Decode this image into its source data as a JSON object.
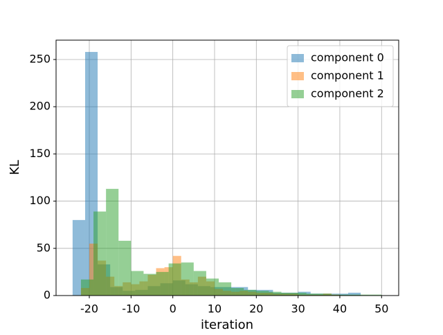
{
  "chart_data": {
    "type": "histogram",
    "x_label": "iteration",
    "y_label": "KL",
    "xlim": [
      -27.96,
      54.1
    ],
    "ylim": [
      0,
      270.5
    ],
    "xticks": [
      -20,
      -10,
      0,
      10,
      20,
      30,
      40,
      50
    ],
    "yticks": [
      0,
      50,
      100,
      150,
      200,
      250
    ],
    "grid": true,
    "legend": "upper-right",
    "opacity": 0.5,
    "series": [
      {
        "name": "component 0",
        "color": "#1f77b4",
        "bins": [
          -24,
          -21,
          -18,
          -15,
          -12,
          -9,
          -6,
          -3,
          0,
          3,
          6,
          9,
          12,
          15,
          18,
          21,
          24,
          27,
          30,
          33,
          36,
          39,
          42,
          45
        ],
        "values": [
          80,
          258,
          33,
          9,
          5,
          6,
          10,
          13,
          16,
          12,
          10,
          9,
          9,
          9,
          6,
          6,
          3,
          3,
          4,
          2,
          2,
          2,
          3
        ]
      },
      {
        "name": "component 1",
        "color": "#ff7f0e",
        "bins": [
          -22,
          -20,
          -18,
          -16,
          -14,
          -12,
          -10,
          -8,
          -6,
          -4,
          -2,
          0,
          2,
          4,
          6,
          8,
          10,
          12,
          14,
          16,
          18,
          20,
          22,
          24,
          26,
          28,
          30,
          32,
          34,
          36,
          38,
          40
        ],
        "values": [
          8,
          55,
          37,
          20,
          10,
          14,
          12,
          15,
          22,
          29,
          30,
          42,
          17,
          14,
          20,
          15,
          7,
          5,
          4,
          5,
          4,
          3,
          3,
          2,
          2,
          2,
          1,
          1,
          1,
          2,
          1
        ]
      },
      {
        "name": "component 2",
        "color": "#2ca02c",
        "bins": [
          -22,
          -19,
          -16,
          -13,
          -10,
          -7,
          -4,
          -1,
          2,
          5,
          8,
          11,
          14,
          17,
          20,
          23,
          26,
          29,
          32,
          35,
          38,
          41,
          44,
          47,
          50
        ],
        "values": [
          17,
          89,
          113,
          58,
          26,
          23,
          25,
          34,
          35,
          26,
          18,
          14,
          8,
          6,
          5,
          4,
          3,
          3,
          2,
          2,
          1,
          1,
          1,
          1
        ]
      }
    ]
  }
}
